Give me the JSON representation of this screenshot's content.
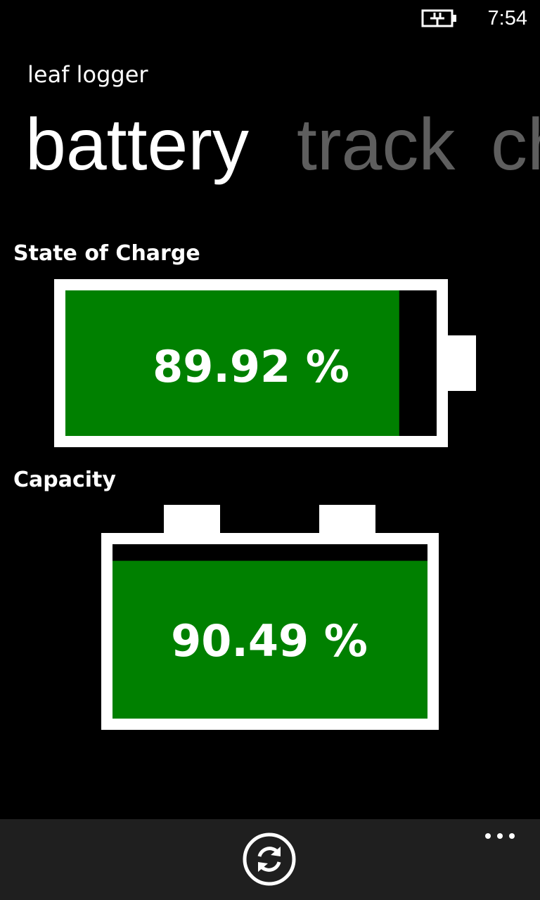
{
  "status_bar": {
    "time": "7:54"
  },
  "header": {
    "app_title": "leaf logger",
    "pivots": [
      "battery",
      "track",
      "ch"
    ]
  },
  "state_of_charge": {
    "label": "State of Charge",
    "value": 89.92,
    "value_label": "89.92 %"
  },
  "capacity": {
    "label": "Capacity",
    "value": 90.49,
    "value_label": "90.49 %"
  }
}
